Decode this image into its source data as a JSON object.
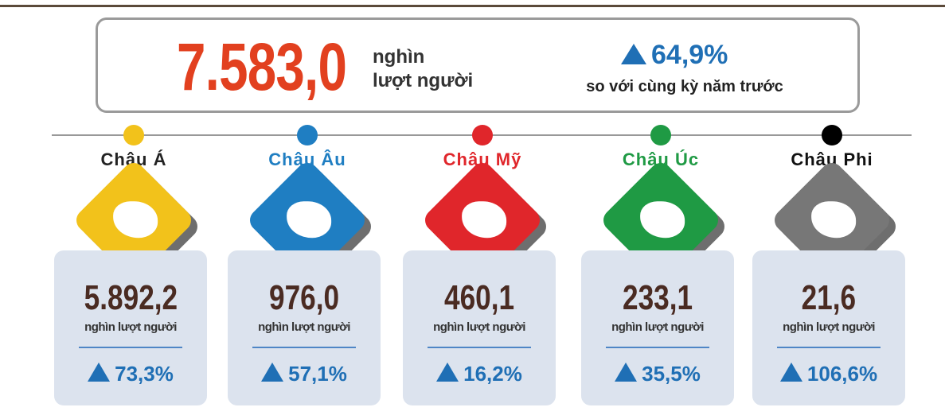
{
  "total": {
    "value": "7.583,0",
    "unit_line1": "nghìn",
    "unit_line2": "lượt người",
    "change": "64,9%",
    "note": "so với cùng kỳ năm trước"
  },
  "regions": [
    {
      "name": "Châu Á",
      "color": "#f2c21b",
      "name_color": "#222222",
      "value": "5.892,2",
      "unit": "nghìn lượt người",
      "change": "73,3%"
    },
    {
      "name": "Châu Âu",
      "color": "#1f7ec2",
      "name_color": "#1f7ec2",
      "value": "976,0",
      "unit": "nghìn lượt người",
      "change": "57,1%"
    },
    {
      "name": "Châu Mỹ",
      "color": "#e0262b",
      "name_color": "#e0262b",
      "value": "460,1",
      "unit": "nghìn lượt người",
      "change": "16,2%"
    },
    {
      "name": "Châu Úc",
      "color": "#1f9a44",
      "name_color": "#1f9a44",
      "value": "233,1",
      "unit": "nghìn lượt người",
      "change": "35,5%"
    },
    {
      "name": "Châu Phi",
      "color": "#777777",
      "dot_color": "#000000",
      "name_color": "#111111",
      "value": "21,6",
      "unit": "nghìn lượt người",
      "change": "106,6%"
    }
  ]
}
